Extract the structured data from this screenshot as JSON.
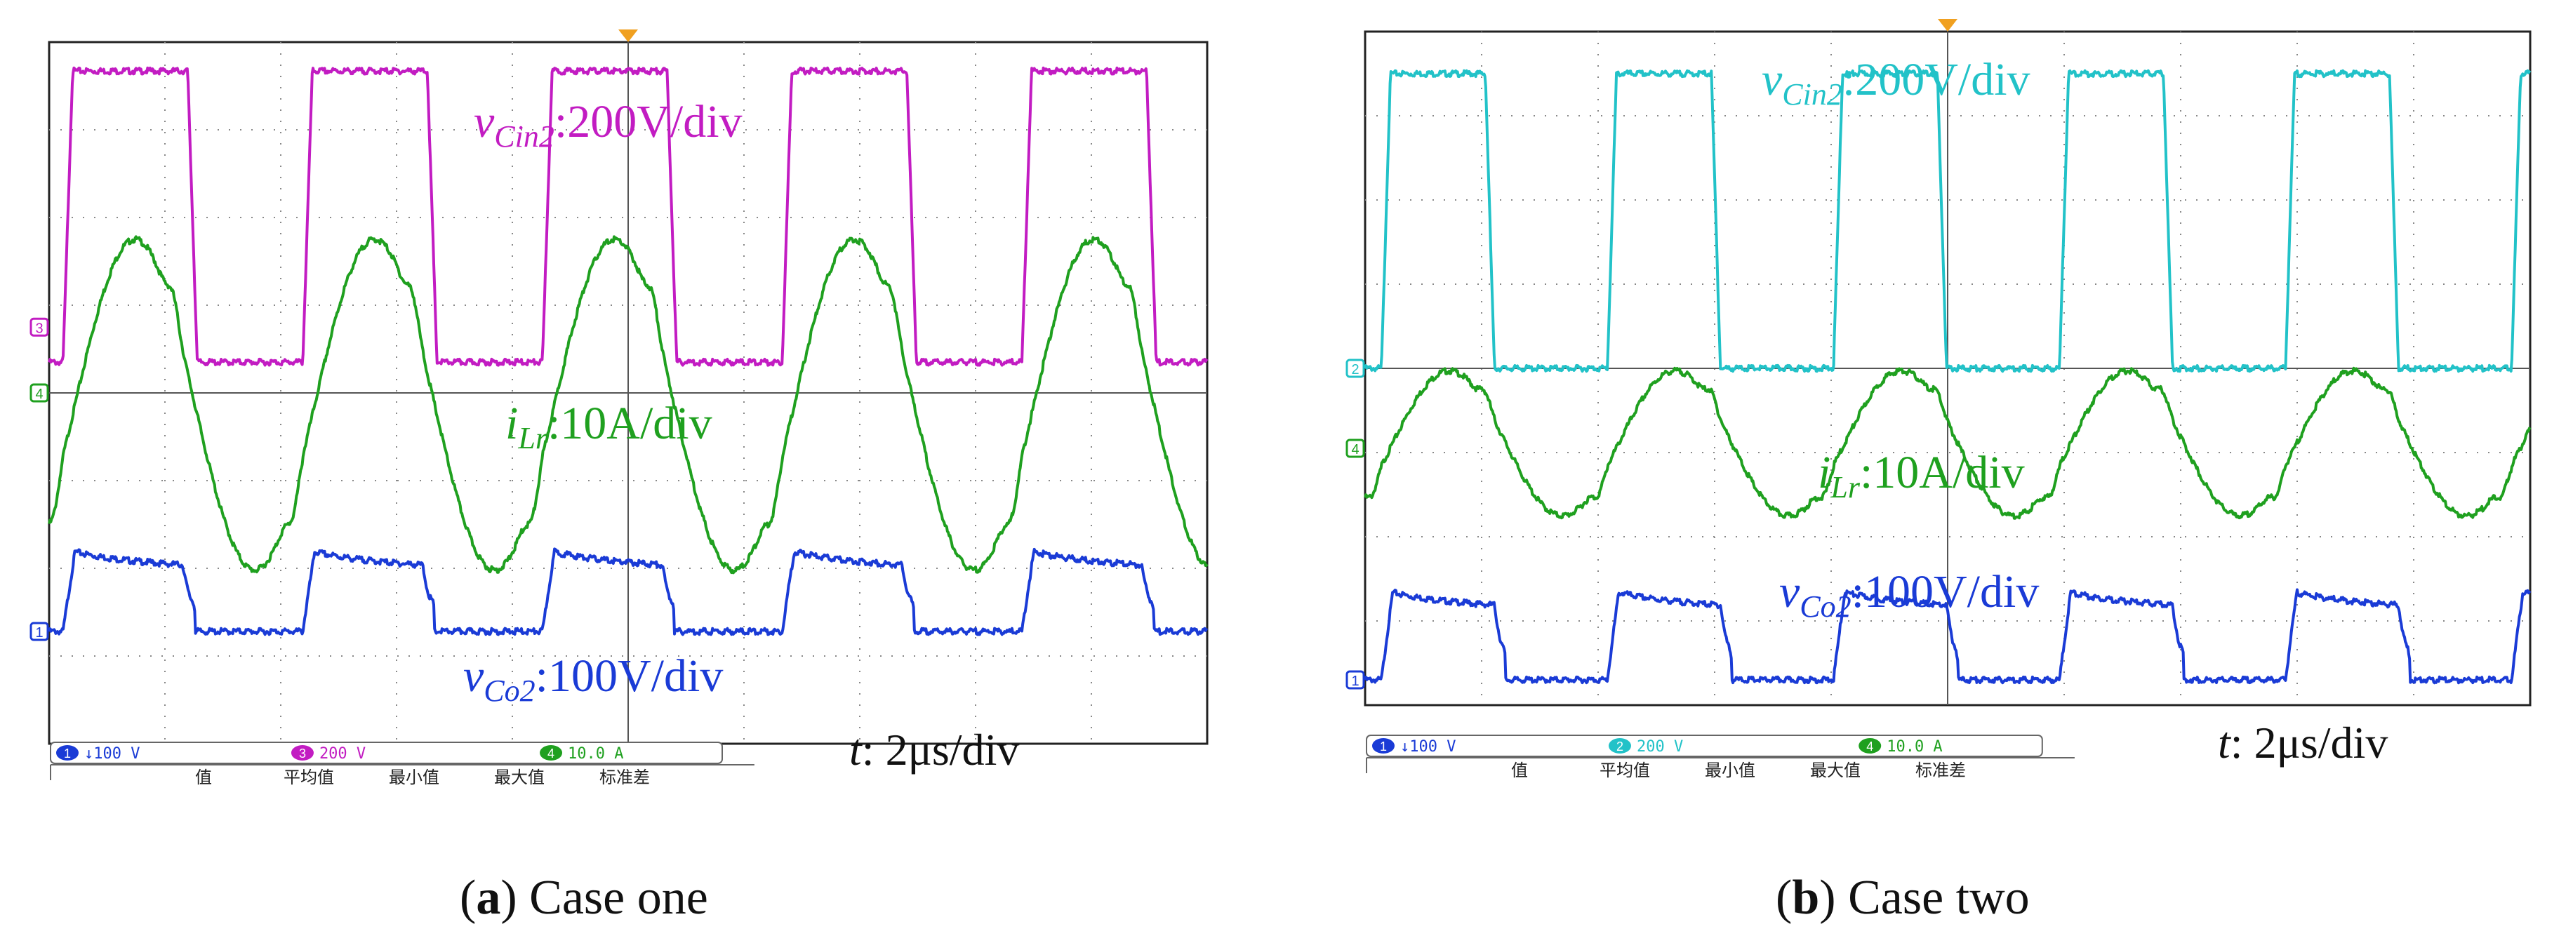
{
  "chart_data": [
    {
      "type": "line",
      "panel_label": "a",
      "caption_text": "Case one",
      "title": "",
      "time_scale": "t: 2μs/div",
      "x_label": "time",
      "x_range_div": [
        0,
        10
      ],
      "y_range_div": [
        -4,
        4
      ],
      "grid": true,
      "channel_markers": [
        "3",
        "4",
        "1"
      ],
      "status_bar": {
        "channels": [
          {
            "id": "1",
            "scale": "↓100 V",
            "color": "#1a3bd6"
          },
          {
            "id": "3",
            "scale": "200 V",
            "color": "#c21cc2"
          },
          {
            "id": "4",
            "scale": "10.0 A",
            "color": "#1fa01f"
          }
        ],
        "measure_labels": [
          "值",
          "平均值",
          "最小值",
          "最大值",
          "标准差"
        ]
      },
      "series": [
        {
          "name": "vCin2",
          "label": "vCin2:200V/div",
          "color": "#c21cc2",
          "scale": "200V/div",
          "kind": "square",
          "period_div": 2.07,
          "phase_div": 0.12,
          "duty": 0.52,
          "high_div": 3.67,
          "low_div": 0.35,
          "ground_div": 0.75
        },
        {
          "name": "iLr",
          "label": "iLr:10A/div",
          "color": "#1fa01f",
          "scale": "10A/div",
          "kind": "resonant",
          "period_div": 2.07,
          "phase_div": 0.12,
          "max_div": 1.75,
          "min_div": -2.02,
          "ground_div": 0
        },
        {
          "name": "vCo2",
          "label": "vCo2:100V/div",
          "color": "#1a3bd6",
          "scale": "100V/div",
          "kind": "rectified",
          "period_div": 2.07,
          "phase_div": 0.12,
          "high_div": -1.9,
          "low_div": -2.72,
          "ground_div": -2.72
        }
      ]
    },
    {
      "type": "line",
      "panel_label": "b",
      "caption_text": "Case two",
      "title": "",
      "time_scale": "t: 2μs/div",
      "x_label": "time",
      "x_range_div": [
        0,
        10
      ],
      "y_range_div": [
        -4,
        4
      ],
      "grid": true,
      "channel_markers": [
        "2",
        "4",
        "1"
      ],
      "status_bar": {
        "channels": [
          {
            "id": "1",
            "scale": "↓100 V",
            "color": "#1a3bd6"
          },
          {
            "id": "2",
            "scale": "200 V",
            "color": "#22c2c8"
          },
          {
            "id": "4",
            "scale": "10.0 A",
            "color": "#1fa01f"
          }
        ],
        "measure_labels": [
          "值",
          "平均值",
          "最小值",
          "最大值",
          "标准差"
        ]
      },
      "series": [
        {
          "name": "vCin2",
          "label": "vCin2:200V/div",
          "color": "#22c2c8",
          "scale": "200V/div",
          "kind": "square",
          "period_div": 1.94,
          "phase_div": 0.14,
          "duty": 0.46,
          "high_div": 3.5,
          "low_div": 0,
          "ground_div": 0
        },
        {
          "name": "iLr",
          "label": "iLr:10A/div",
          "color": "#1fa01f",
          "scale": "10A/div",
          "kind": "resonant2",
          "period_div": 1.94,
          "phase_div": 0.14,
          "max_div": -0.03,
          "min_div": -1.75,
          "ground_div": -0.95
        },
        {
          "name": "vCo2",
          "label": "vCo2:100V/div",
          "color": "#1a3bd6",
          "scale": "100V/div",
          "kind": "rectified",
          "period_div": 1.94,
          "phase_div": 0.14,
          "high_div": -2.75,
          "low_div": -3.7,
          "ground_div": -3.7
        }
      ]
    }
  ]
}
